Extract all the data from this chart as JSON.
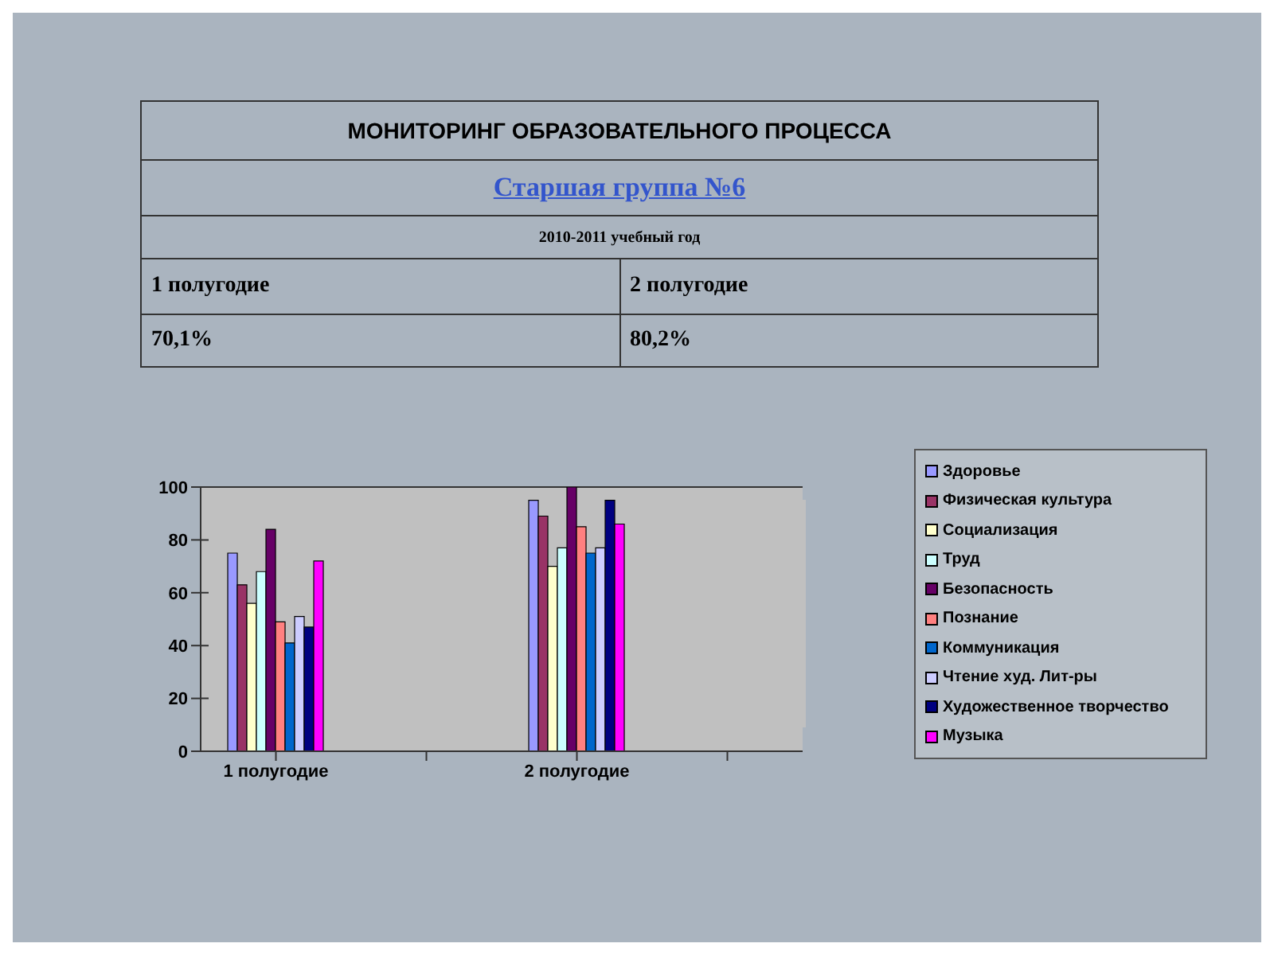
{
  "chart_data": {
    "type": "bar",
    "title": "МОНИТОРИНГ ОБРАЗОВАТЕЛЬНОГО ПРОЦЕССА",
    "subtitle": "Старшая группа №6",
    "annotations": [
      "2010-2011 учебный год",
      "1 полугодие",
      "2 полугодие",
      "70,1%",
      "80,2%"
    ],
    "categories": [
      "1 полугодие",
      null,
      "2 полугодие",
      null
    ],
    "series": [
      {
        "name": "Здоровье",
        "color": "#9999ff",
        "values": [
          75,
          null,
          95,
          null
        ]
      },
      {
        "name": "Физическая культура",
        "color": "#993366",
        "values": [
          63,
          null,
          89,
          null
        ]
      },
      {
        "name": "Социализация",
        "color": "#ffffcc",
        "values": [
          56,
          null,
          70,
          null
        ]
      },
      {
        "name": "Труд",
        "color": "#ccffff",
        "values": [
          68,
          null,
          77,
          null
        ]
      },
      {
        "name": "Безопасность",
        "color": "#660066",
        "values": [
          84,
          null,
          100,
          null
        ]
      },
      {
        "name": "Познание",
        "color": "#ff8080",
        "values": [
          49,
          null,
          85,
          null
        ]
      },
      {
        "name": "Коммуникация",
        "color": "#0066cc",
        "values": [
          41,
          null,
          75,
          null
        ]
      },
      {
        "name": "Чтение худ. Лит-ры",
        "color": "#ccccff",
        "values": [
          51,
          null,
          77,
          null
        ]
      },
      {
        "name": "Художественное творчество",
        "color": "#000080",
        "values": [
          47,
          null,
          95,
          null
        ]
      },
      {
        "name": "Музыка",
        "color": "#ff00ff",
        "values": [
          72,
          null,
          86,
          null
        ]
      }
    ],
    "ylim": [
      0,
      100
    ],
    "yticks": [
      0,
      20,
      40,
      60,
      80,
      100
    ],
    "grid": "y",
    "legend": "right"
  }
}
